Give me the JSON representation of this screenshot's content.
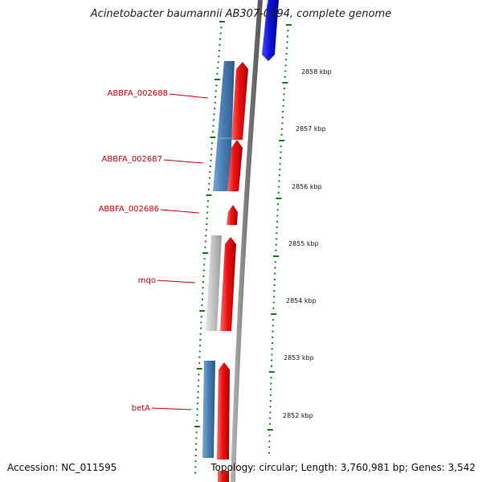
{
  "title": "Acinetobacter baumannii AB307-0294, complete genome",
  "footer": {
    "accession": "Accession: NC_011595",
    "topology": "Topology: circular; Length: 3,760,981 bp; Genes: 3,542"
  },
  "colors": {
    "forward_cds": "#ee1111",
    "reverse_cds": "#4a7fb5",
    "other_feature": "#c0c0c0",
    "highlight_feature": "#1111dd",
    "backbone": "#808080",
    "tick_marks": "#1a7a1a",
    "gene_label": "#cc0000"
  },
  "scale": {
    "unit": "kbp",
    "ticks": [
      {
        "label": "2858 kbp",
        "kbp": 2858
      },
      {
        "label": "2857 kbp",
        "kbp": 2857
      },
      {
        "label": "2856 kbp",
        "kbp": 2856
      },
      {
        "label": "2855 kbp",
        "kbp": 2855
      },
      {
        "label": "2854 kbp",
        "kbp": 2854
      },
      {
        "label": "2853 kbp",
        "kbp": 2853
      },
      {
        "label": "2852 kbp",
        "kbp": 2852
      }
    ]
  },
  "gene_labels": [
    {
      "name": "ABBFA_002688"
    },
    {
      "name": "ABBFA_002687"
    },
    {
      "name": "ABBFA_002686"
    },
    {
      "name": "mqo"
    },
    {
      "name": "betA"
    }
  ]
}
